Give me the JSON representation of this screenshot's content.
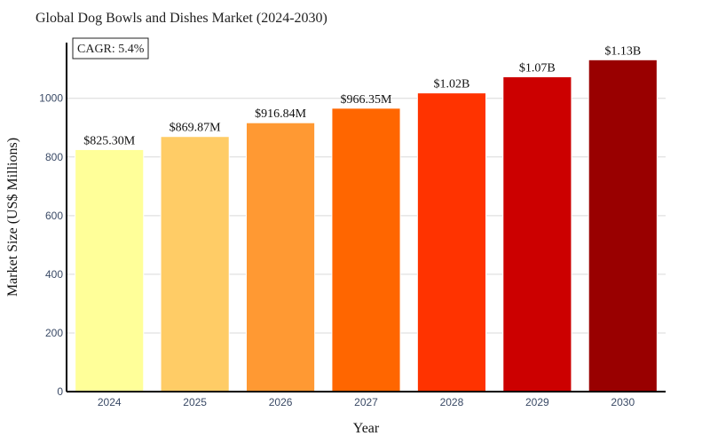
{
  "chart_data": {
    "type": "bar",
    "title": "Global Dog Bowls and Dishes Market (2024-2030)",
    "xlabel": "Year",
    "ylabel": "Market Size (US$ Millions)",
    "categories": [
      "2024",
      "2025",
      "2026",
      "2027",
      "2028",
      "2029",
      "2030"
    ],
    "values": [
      825.3,
      869.87,
      916.84,
      966.35,
      1018.5,
      1073.5,
      1131.5
    ],
    "data_labels": [
      "$825.30M",
      "$869.87M",
      "$916.84M",
      "$966.35M",
      "$1.02B",
      "$1.07B",
      "$1.13B"
    ],
    "colors": [
      "#FFFF99",
      "#FFCC66",
      "#FF9933",
      "#FF6600",
      "#FF3300",
      "#CC0000",
      "#990000"
    ],
    "ylim": [
      0,
      1190
    ],
    "yticks": [
      0,
      200,
      400,
      600,
      800,
      1000
    ],
    "grid": true,
    "annotation": "CAGR: 5.4%"
  }
}
